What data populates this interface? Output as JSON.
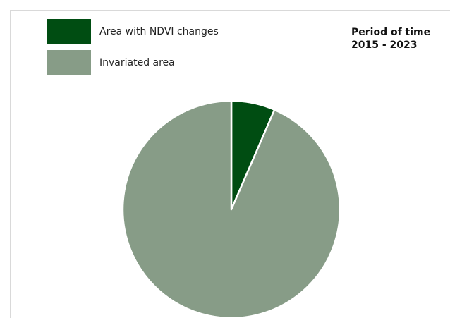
{
  "period": {
    "line1": "Period of time",
    "line2": "2015 - 2023"
  },
  "chart_data": {
    "type": "pie",
    "title": "",
    "slices": [
      {
        "label": "Area with NDVI changes",
        "value": 6.5,
        "color": "#004d12"
      },
      {
        "label": "Invariated area",
        "value": 93.5,
        "color": "#879c87"
      }
    ],
    "start_angle": "12 o'clock",
    "direction": "clockwise",
    "legend_position": "top-left"
  }
}
